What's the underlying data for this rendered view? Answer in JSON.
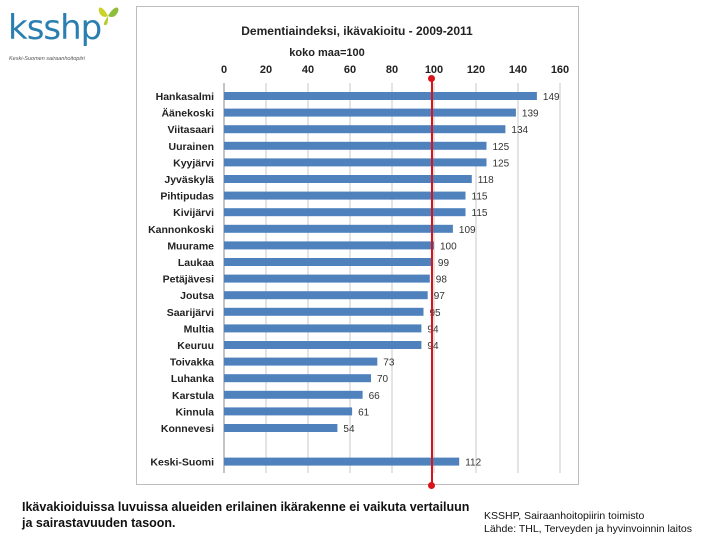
{
  "logo": {
    "text": "ksshp",
    "subtitle": "Keski-Suomen sairaanhoitopiiri"
  },
  "chart_data": {
    "type": "bar",
    "orientation": "horizontal",
    "title": "Dementiaindeksi, ikävakioitu - 2009-2011",
    "subtitle": "koko maa=100",
    "xlim": [
      0,
      160
    ],
    "xticks": [
      0,
      20,
      40,
      60,
      80,
      100,
      120,
      140,
      160
    ],
    "reference_value": 100,
    "bar_color": "#4f81bd",
    "reference_color": "#d9121b",
    "grid": true,
    "categories": [
      "Hankasalmi",
      "Äänekoski",
      "Viitasaari",
      "Uurainen",
      "Kyyjärvi",
      "Jyväskylä",
      "Pihtipudas",
      "Kivijärvi",
      "Kannonkoski",
      "Muurame",
      "Laukaa",
      "Petäjävesi",
      "Joutsa",
      "Saarijärvi",
      "Multia",
      "Keuruu",
      "Toivakka",
      "Luhanka",
      "Karstula",
      "Kinnula",
      "Konnevesi",
      "Keski-Suomi"
    ],
    "values": [
      149,
      139,
      134,
      125,
      125,
      118,
      115,
      115,
      109,
      100,
      99,
      98,
      97,
      95,
      94,
      94,
      73,
      70,
      66,
      61,
      54,
      112
    ]
  },
  "caption": "Ikävakioiduissa luvuissa alueiden erilainen ikärakenne ei vaikuta vertailuun ja sairastavuuden tasoon.",
  "source": {
    "line1": "KSSHP, Sairaanhoitopiirin toimisto",
    "line2": "Lähde:  THL, Terveyden ja hyvinvoinnin laitos"
  }
}
